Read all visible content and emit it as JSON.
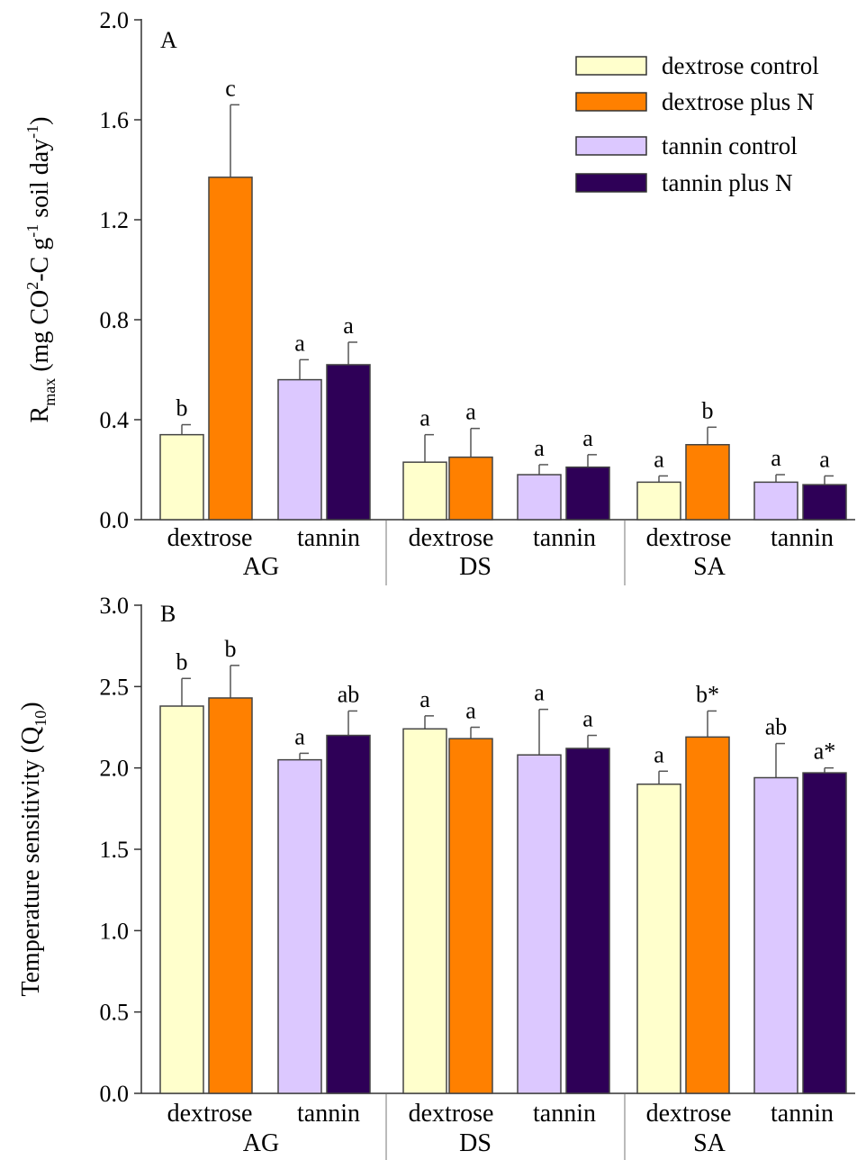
{
  "colors": {
    "dextrose_control": "#ffffcc",
    "dextrose_plus_n": "#ff8000",
    "tannin_control": "#dcc8ff",
    "tannin_plus_n": "#2e0057",
    "error_bar": "#555555",
    "axis": "#333333"
  },
  "legend": {
    "placement": "top-right of panel A",
    "entries": [
      {
        "label": "dextrose control",
        "color_key": "dextrose_control"
      },
      {
        "label": "dextrose plus N",
        "color_key": "dextrose_plus_n"
      },
      {
        "label": "tannin control",
        "color_key": "tannin_control"
      },
      {
        "label": "tannin plus N",
        "color_key": "tannin_plus_n"
      }
    ]
  },
  "chart_data": [
    {
      "panel": "A",
      "type": "bar",
      "ylabel": {
        "main": "R",
        "sub": "max",
        "rest1": " (mg CO",
        "sup1": "2",
        "rest2": "-C g",
        "sup2": "-1",
        "rest3": " soil day",
        "sup3": "-1",
        "rest4": ")"
      },
      "ylim": [
        0,
        2.0
      ],
      "yticks": [
        "0.0",
        "0.4",
        "0.8",
        "1.2",
        "1.6",
        "2.0"
      ],
      "grid": false,
      "sites": [
        "AG",
        "DS",
        "SA"
      ],
      "substrates": [
        "dextrose",
        "tannin"
      ],
      "series": [
        {
          "name": "dextrose control",
          "site": [
            "AG",
            "DS",
            "SA"
          ],
          "values": [
            0.34,
            0.23,
            0.15
          ],
          "errors": [
            0.04,
            0.11,
            0.025
          ],
          "letters": [
            "b",
            "a",
            "a"
          ]
        },
        {
          "name": "dextrose plus N",
          "values": [
            1.37,
            0.25,
            0.3
          ],
          "errors": [
            0.29,
            0.115,
            0.07
          ],
          "letters": [
            "c",
            "a",
            "b"
          ]
        },
        {
          "name": "tannin control",
          "values": [
            0.56,
            0.18,
            0.15
          ],
          "errors": [
            0.08,
            0.04,
            0.03
          ],
          "letters": [
            "a",
            "a",
            "a"
          ]
        },
        {
          "name": "tannin plus N",
          "values": [
            0.62,
            0.21,
            0.14
          ],
          "errors": [
            0.09,
            0.05,
            0.035
          ],
          "letters": [
            "a",
            "a",
            "a"
          ]
        }
      ]
    },
    {
      "panel": "B",
      "type": "bar",
      "ylabel": {
        "main": "Temperature sensitivity (Q",
        "sub": "10",
        "rest": ")"
      },
      "ylim": [
        0,
        3.0
      ],
      "yticks": [
        "0.0",
        "0.5",
        "1.0",
        "1.5",
        "2.0",
        "2.5",
        "3.0"
      ],
      "grid": false,
      "sites": [
        "AG",
        "DS",
        "SA"
      ],
      "substrates": [
        "dextrose",
        "tannin"
      ],
      "series": [
        {
          "name": "dextrose control",
          "values": [
            2.38,
            2.24,
            1.9
          ],
          "errors": [
            0.17,
            0.08,
            0.08
          ],
          "letters": [
            "b",
            "a",
            "a"
          ]
        },
        {
          "name": "dextrose plus N",
          "values": [
            2.43,
            2.18,
            2.19
          ],
          "errors": [
            0.2,
            0.07,
            0.16
          ],
          "letters": [
            "b",
            "a",
            "b*"
          ]
        },
        {
          "name": "tannin control",
          "values": [
            2.05,
            2.08,
            1.94
          ],
          "errors": [
            0.04,
            0.28,
            0.21
          ],
          "letters": [
            "a",
            "a",
            "ab"
          ]
        },
        {
          "name": "tannin plus N",
          "values": [
            2.2,
            2.12,
            1.97
          ],
          "errors": [
            0.15,
            0.08,
            0.03
          ],
          "letters": [
            "ab",
            "a",
            "a*"
          ]
        }
      ]
    }
  ]
}
